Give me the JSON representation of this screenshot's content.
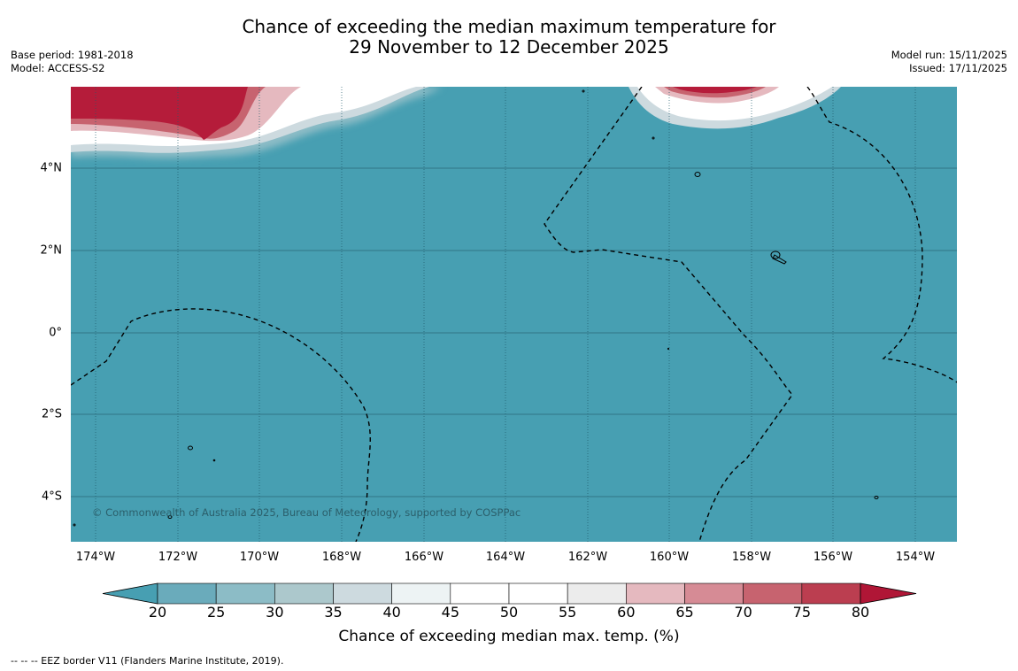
{
  "title": {
    "line1": "Chance of exceeding the median maximum temperature for",
    "line2": "29 November to 12 December 2025"
  },
  "meta_left": {
    "base_period": "Base period: 1981-2018",
    "model": "Model: ACCESS-S2"
  },
  "meta_right": {
    "model_run": "Model run: 15/11/2025",
    "issued": "Issued: 17/11/2025"
  },
  "map": {
    "copyright": "© Commonwealth of Australia 2025, Bureau of Meteorology, supported by COSPPac",
    "latitude_labels": [
      "4°N",
      "2°N",
      "0°",
      "2°S",
      "4°S"
    ],
    "longitude_labels": [
      "174°W",
      "172°W",
      "170°W",
      "168°W",
      "166°W",
      "164°W",
      "162°W",
      "160°W",
      "158°W",
      "156°W",
      "154°W"
    ],
    "ocean_color": "#479fb2",
    "warm_color": "#b51c3a"
  },
  "colorbar": {
    "title": "Chance of exceeding median max. temp. (%)",
    "ticks": [
      "20",
      "25",
      "30",
      "35",
      "40",
      "45",
      "50",
      "55",
      "60",
      "65",
      "70",
      "75",
      "80"
    ],
    "colors": [
      "#479fb2",
      "#6aabbb",
      "#8cbcc6",
      "#acc8cc",
      "#cddadf",
      "#edf3f4",
      "#ffffff",
      "#ffffff",
      "#ececec",
      "#e5b9bf",
      "#d68b95",
      "#c7636f",
      "#bb3e50",
      "#b01636"
    ]
  },
  "footnote": "--  --  -- EEZ border V11 (Flanders Marine Institute, 2019)."
}
